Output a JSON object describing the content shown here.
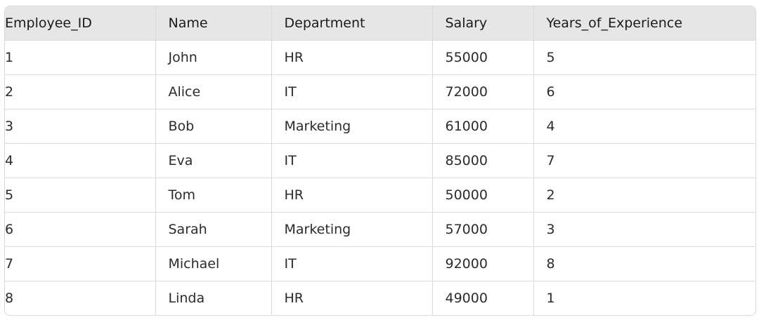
{
  "table": {
    "columns": [
      "Employee_ID",
      "Name",
      "Department",
      "Salary",
      "Years_of_Experience"
    ],
    "rows": [
      [
        "1",
        "John",
        "HR",
        "55000",
        "5"
      ],
      [
        "2",
        "Alice",
        "IT",
        "72000",
        "6"
      ],
      [
        "3",
        "Bob",
        "Marketing",
        "61000",
        "4"
      ],
      [
        "4",
        "Eva",
        "IT",
        "85000",
        "7"
      ],
      [
        "5",
        "Tom",
        "HR",
        "50000",
        "2"
      ],
      [
        "6",
        "Sarah",
        "Marketing",
        "57000",
        "3"
      ],
      [
        "7",
        "Michael",
        "IT",
        "92000",
        "8"
      ],
      [
        "8",
        "Linda",
        "HR",
        "49000",
        "1"
      ]
    ]
  }
}
